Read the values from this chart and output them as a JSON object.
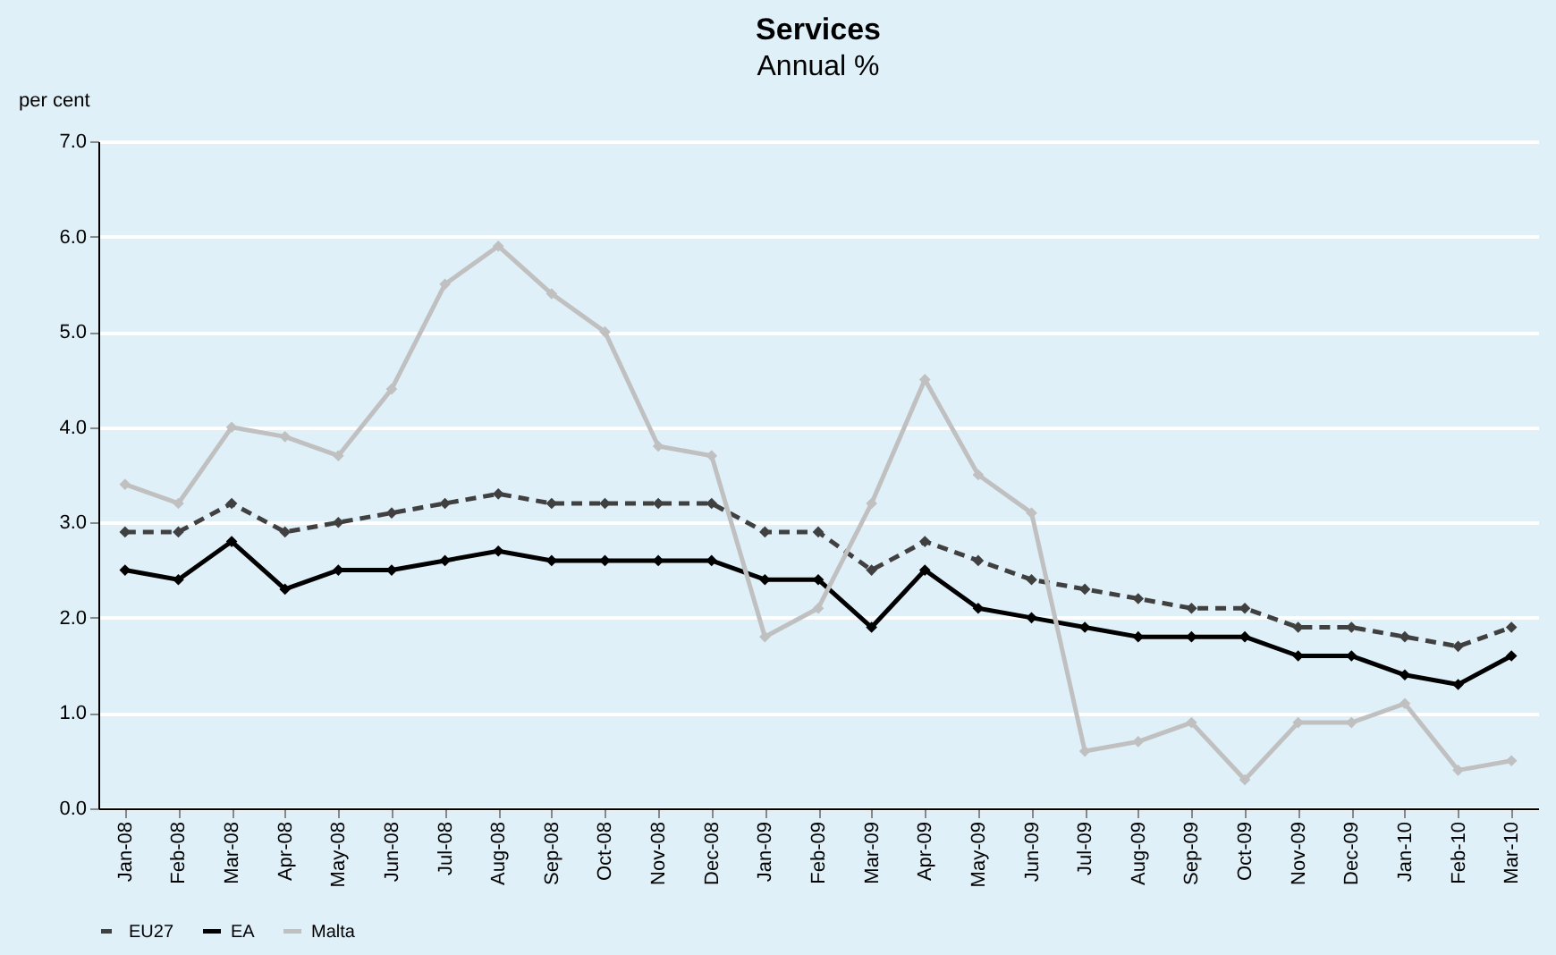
{
  "chart_data": {
    "type": "line",
    "title": "Services",
    "subtitle": "Annual %",
    "ylabel": "per cent",
    "categories": [
      "Jan-08",
      "Feb-08",
      "Mar-08",
      "Apr-08",
      "May-08",
      "Jun-08",
      "Jul-08",
      "Aug-08",
      "Sep-08",
      "Oct-08",
      "Nov-08",
      "Dec-08",
      "Jan-09",
      "Feb-09",
      "Mar-09",
      "Apr-09",
      "May-09",
      "Jun-09",
      "Jul-09",
      "Aug-09",
      "Sep-09",
      "Oct-09",
      "Nov-09",
      "Dec-09",
      "Jan-10",
      "Feb-10",
      "Mar-10"
    ],
    "series": [
      {
        "name": "EU27",
        "color": "#404040",
        "line_style": "dashed",
        "values": [
          2.9,
          2.9,
          3.2,
          2.9,
          3.0,
          3.1,
          3.2,
          3.3,
          3.2,
          3.2,
          3.2,
          3.2,
          2.9,
          2.9,
          2.5,
          2.8,
          2.6,
          2.4,
          2.3,
          2.2,
          2.1,
          2.1,
          1.9,
          1.9,
          1.8,
          1.7,
          1.9
        ]
      },
      {
        "name": "EA",
        "color": "#000000",
        "line_style": "solid",
        "values": [
          2.5,
          2.4,
          2.8,
          2.3,
          2.5,
          2.5,
          2.6,
          2.7,
          2.6,
          2.6,
          2.6,
          2.6,
          2.4,
          2.4,
          1.9,
          2.5,
          2.1,
          2.0,
          1.9,
          1.8,
          1.8,
          1.8,
          1.6,
          1.6,
          1.4,
          1.3,
          1.6
        ]
      },
      {
        "name": "Malta",
        "color": "#c0c0c0",
        "line_style": "solid",
        "values": [
          3.4,
          3.2,
          4.0,
          3.9,
          3.7,
          4.4,
          5.5,
          5.9,
          5.4,
          5.0,
          3.8,
          3.7,
          1.8,
          2.1,
          3.2,
          4.5,
          3.5,
          3.1,
          0.6,
          0.7,
          0.9,
          0.3,
          0.9,
          0.9,
          1.1,
          0.4,
          0.5
        ]
      }
    ],
    "ylim": [
      0,
      7
    ],
    "yticks": [
      {
        "value": 0,
        "label": "0.0"
      },
      {
        "value": 1,
        "label": "1.0"
      },
      {
        "value": 2,
        "label": "2.0"
      },
      {
        "value": 3,
        "label": "3.0"
      },
      {
        "value": 4,
        "label": "4.0"
      },
      {
        "value": 5,
        "label": "5.0"
      },
      {
        "value": 6,
        "label": "6.0"
      },
      {
        "value": 7,
        "label": "7.0"
      }
    ],
    "grid": "y",
    "legend": "bottom",
    "marker": "diamond"
  }
}
